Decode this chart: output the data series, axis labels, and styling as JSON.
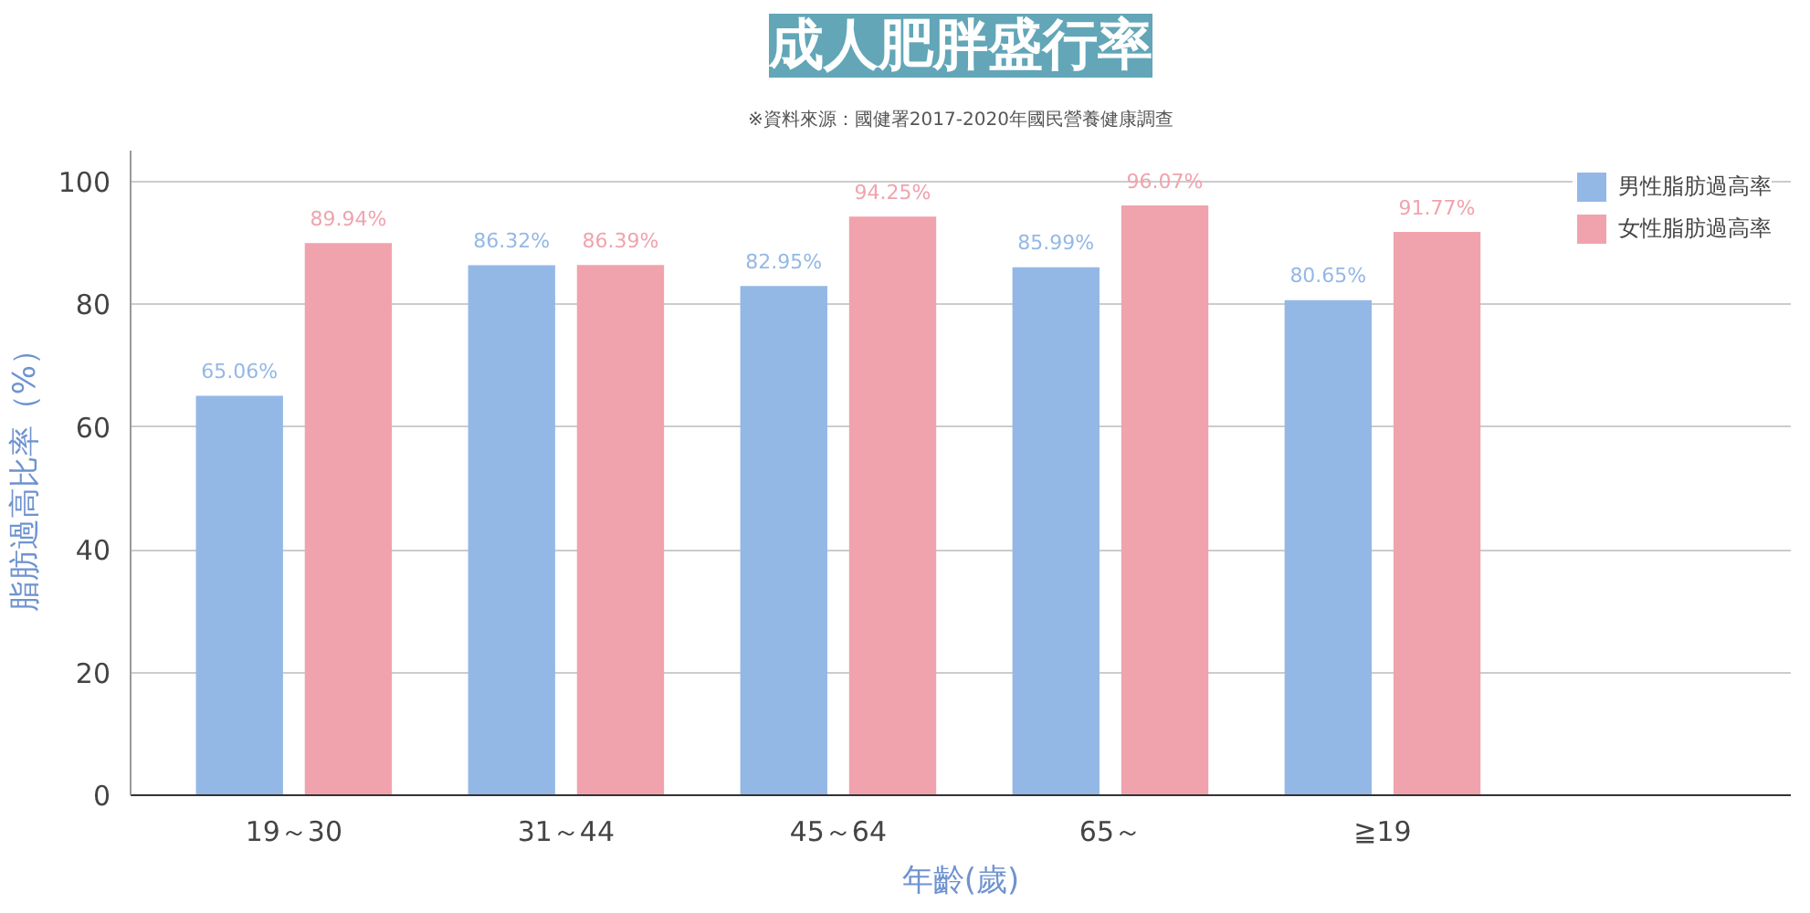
{
  "chart_data": {
    "type": "bar",
    "title": "成人肥胖盛行率",
    "subtitle": "※資料來源：國健署2017-2020年國民營養健康調查",
    "xlabel": "年齡(歲)",
    "ylabel": "脂肪過高比率（%）",
    "categories": [
      "19～30",
      "31～44",
      "45～64",
      "65～",
      "≧19"
    ],
    "series": [
      {
        "name": "男性脂肪過高率",
        "color": "#94b8e6",
        "values": [
          65.06,
          86.32,
          82.95,
          85.99,
          80.65
        ],
        "value_labels": [
          "65.06%",
          "86.32%",
          "82.95%",
          "85.99%",
          "80.65%"
        ]
      },
      {
        "name": "女性脂肪過高率",
        "color": "#f0a3ad",
        "values": [
          89.94,
          86.39,
          94.25,
          96.07,
          91.77
        ],
        "value_labels": [
          "89.94%",
          "86.39%",
          "94.25%",
          "96.07%",
          "91.77%"
        ]
      }
    ],
    "ylim": [
      0,
      105
    ],
    "yticks": [
      0,
      20,
      40,
      60,
      80,
      100
    ],
    "grid": "y",
    "legend": "top right"
  }
}
